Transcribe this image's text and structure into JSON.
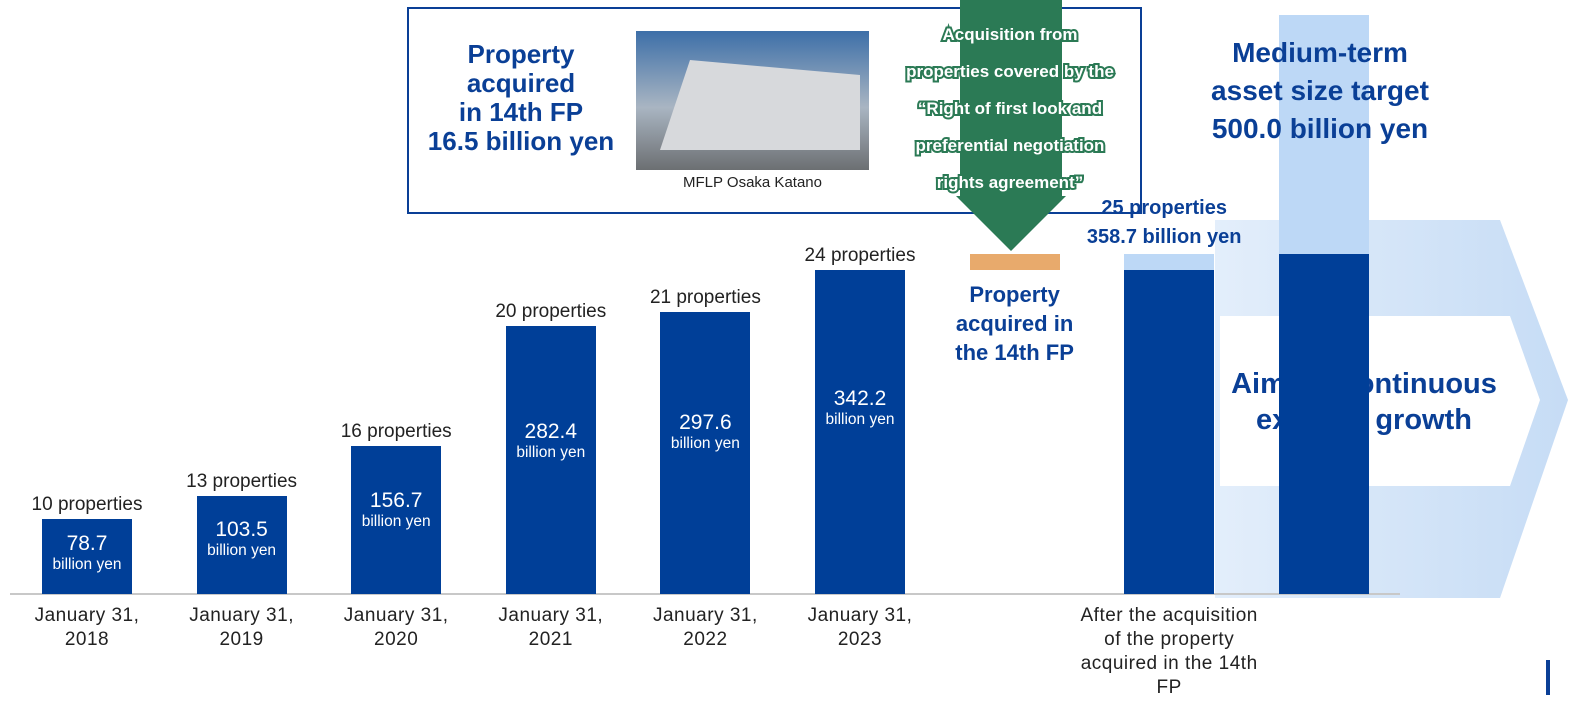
{
  "chart_data": {
    "type": "bar",
    "categories": [
      "January 31, 2018",
      "January 31, 2019",
      "January 31, 2020",
      "January 31, 2021",
      "January 31, 2022",
      "January 31, 2023"
    ],
    "values": [
      78.7,
      103.5,
      156.7,
      282.4,
      297.6,
      342.2
    ],
    "unit": "billion yen",
    "count_labels": [
      "10 properties",
      "13 properties",
      "16 properties",
      "20 properties",
      "21 properties",
      "24 properties"
    ],
    "color": "#003f98",
    "ylim": [
      0,
      627
    ],
    "acquisition": {
      "value": 16.5,
      "color": "#e8aa6c",
      "lines": [
        "Property",
        "acquired in",
        "the 14th FP"
      ]
    },
    "after": {
      "category": "After the acquisition of the property acquired in the 14th FP",
      "values": [
        342.2,
        16.5
      ],
      "colors": [
        "#003f98",
        "#bdd8f6"
      ],
      "count_label": "25 properties",
      "total_label": "358.7 billion yen"
    },
    "target": {
      "lines": [
        "Medium-term",
        "asset size target",
        "500.0 billion yen"
      ]
    },
    "growth": "Aim for continuous external growth",
    "box": {
      "lines": [
        "Property",
        "acquired",
        "in 14th FP",
        "16.5 billion yen"
      ],
      "caption": "MFLP Osaka Katano"
    },
    "arrow_text": [
      "Acquisition from",
      "properties covered by the",
      "“Right of first look and",
      "preferential negotiation",
      "rights agreement”"
    ]
  }
}
